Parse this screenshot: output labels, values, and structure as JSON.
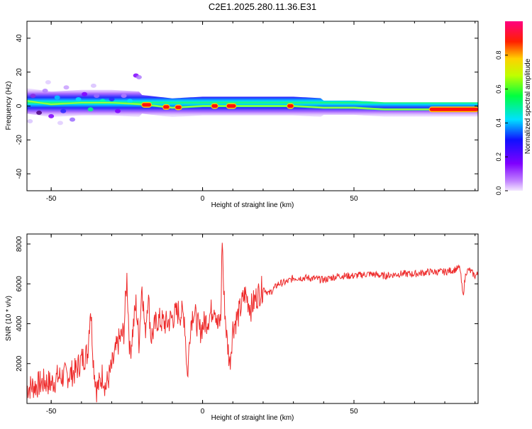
{
  "title": "C2E1.2025.280.11.36.E31",
  "colors": {
    "line": "#ee2b2b",
    "axis": "#000000"
  },
  "chart_data": [
    {
      "type": "heatmap",
      "xlabel": "Height of straight line (km)",
      "ylabel": "Frequency (Hz)",
      "xlim": [
        -58,
        91
      ],
      "ylim": [
        -50,
        50
      ],
      "xticks": [
        -50,
        0,
        50
      ],
      "yticks": [
        -40,
        -20,
        0,
        20,
        40
      ],
      "xtick_labels": [
        "-50",
        "0",
        "50"
      ],
      "ytick_labels": [
        "-40",
        "-20",
        "0",
        "20",
        "40"
      ],
      "colorbar": {
        "label": "Normalized spectral amplitude",
        "range": [
          0,
          1
        ],
        "ticks": [
          0.0,
          0.2,
          0.4,
          0.6,
          0.8
        ],
        "tick_labels": [
          "0.0",
          "0.2",
          "0.4",
          "0.6",
          "0.8"
        ]
      },
      "ridge_frequency_track": [
        [
          -58,
          3
        ],
        [
          -50,
          1
        ],
        [
          -40,
          2
        ],
        [
          -30,
          2
        ],
        [
          -20,
          1
        ],
        [
          -10,
          -1
        ],
        [
          0,
          0
        ],
        [
          10,
          0
        ],
        [
          20,
          0
        ],
        [
          30,
          0
        ],
        [
          40,
          -1
        ],
        [
          50,
          -1
        ],
        [
          60,
          -2
        ],
        [
          70,
          -2
        ],
        [
          80,
          -2
        ],
        [
          91,
          -2
        ]
      ],
      "peak_amplitude_regions_km": [
        [
          -20,
          -17
        ],
        [
          -13,
          -11
        ],
        [
          -9,
          -7
        ],
        [
          3,
          5
        ],
        [
          8,
          11
        ],
        [
          28,
          30
        ],
        [
          75,
          91
        ]
      ]
    },
    {
      "type": "line",
      "xlabel": "Height of straight line (km)",
      "ylabel": "SNR (10 * v/v)",
      "xlim": [
        -58,
        91
      ],
      "ylim": [
        0,
        8500
      ],
      "xticks": [
        -50,
        0,
        50
      ],
      "yticks": [
        2000,
        4000,
        6000,
        8000
      ],
      "xtick_labels": [
        "-50",
        "0",
        "50"
      ],
      "ytick_labels": [
        "2000",
        "4000",
        "6000",
        "8000"
      ],
      "series": [
        {
          "name": "SNR",
          "x": [
            -58,
            -55,
            -52,
            -50,
            -48,
            -45,
            -42,
            -40,
            -38,
            -37,
            -36,
            -35,
            -34,
            -33,
            -32,
            -30,
            -28,
            -26,
            -25,
            -24,
            -23,
            -22,
            -21,
            -20,
            -19,
            -18,
            -17,
            -15,
            -12,
            -10,
            -8,
            -6,
            -5,
            -4,
            -3,
            -1,
            0,
            2,
            4,
            5,
            6,
            6.5,
            7,
            8,
            9,
            10,
            12,
            14,
            16,
            18,
            20,
            22,
            25,
            28,
            30,
            35,
            40,
            45,
            50,
            55,
            60,
            65,
            70,
            75,
            80,
            83,
            85,
            86,
            87,
            88,
            90,
            91
          ],
          "y": [
            800,
            900,
            1100,
            1000,
            1300,
            1400,
            1600,
            2200,
            2500,
            4900,
            2000,
            700,
            1000,
            1500,
            800,
            1800,
            3000,
            3600,
            6300,
            2500,
            3700,
            5000,
            3100,
            6100,
            3500,
            5500,
            3300,
            4200,
            4000,
            4300,
            4600,
            4400,
            1300,
            4000,
            4700,
            3600,
            3900,
            4300,
            5000,
            3800,
            4200,
            8400,
            5500,
            3300,
            2000,
            3800,
            4500,
            5500,
            4800,
            5400,
            5800,
            5500,
            6000,
            6100,
            6300,
            6300,
            6200,
            6400,
            6400,
            6500,
            6400,
            6500,
            6500,
            6600,
            6600,
            6700,
            6800,
            5400,
            6600,
            6700,
            6400,
            6500
          ]
        }
      ]
    }
  ]
}
